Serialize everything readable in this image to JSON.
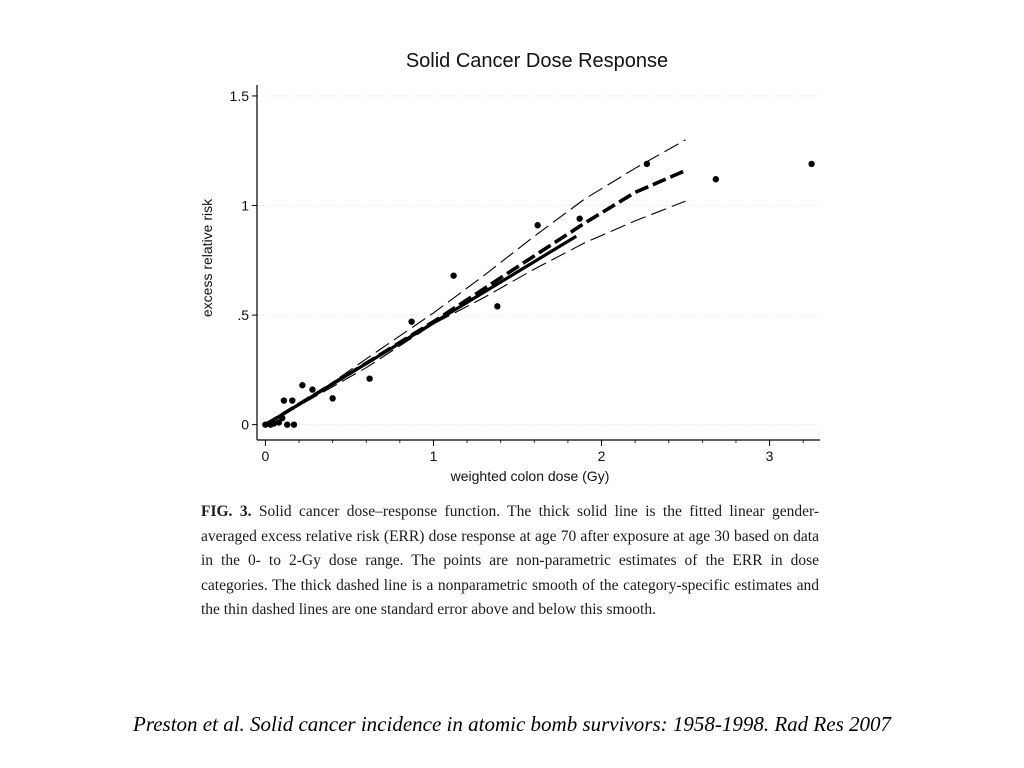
{
  "chart_data": {
    "type": "line",
    "title": "Solid Cancer Dose Response",
    "xlabel": "weighted colon dose (Gy)",
    "ylabel": "excess relative risk",
    "xlim": [
      -0.05,
      3.3
    ],
    "ylim": [
      -0.07,
      1.55
    ],
    "x_ticks": [
      0,
      1,
      2,
      3
    ],
    "x_tick_labels": [
      "0",
      "1",
      "2",
      "3"
    ],
    "x_minor_ticks": [
      0.2,
      0.4,
      0.6,
      0.8,
      1.2,
      1.4,
      1.6,
      1.8,
      2.2,
      2.4,
      2.6,
      2.8,
      3.2
    ],
    "y_ticks": [
      0,
      0.5,
      1,
      1.5
    ],
    "y_tick_labels": [
      "0",
      ".5",
      "1",
      "1.5"
    ],
    "grid": true,
    "series": [
      {
        "style": "thick-solid",
        "x": [
          0,
          1.85
        ],
        "y": [
          0,
          0.86
        ]
      },
      {
        "style": "thick-dashed",
        "x": [
          0,
          0.3,
          0.6,
          1.0,
          1.3,
          1.6,
          1.9,
          2.2,
          2.5
        ],
        "y": [
          0,
          0.14,
          0.28,
          0.47,
          0.62,
          0.77,
          0.92,
          1.06,
          1.16
        ]
      },
      {
        "style": "thin-dashed",
        "x": [
          0,
          0.3,
          0.6,
          1.0,
          1.3,
          1.6,
          1.9,
          2.2,
          2.5
        ],
        "y": [
          0,
          0.14,
          0.3,
          0.51,
          0.68,
          0.86,
          1.03,
          1.17,
          1.3
        ]
      },
      {
        "style": "thin-dashed",
        "x": [
          0,
          0.3,
          0.6,
          1.0,
          1.3,
          1.6,
          1.9,
          2.2,
          2.5
        ],
        "y": [
          0,
          0.13,
          0.26,
          0.46,
          0.58,
          0.71,
          0.83,
          0.93,
          1.02
        ]
      },
      {
        "style": "points",
        "x": [
          0.0,
          0.03,
          0.05,
          0.08,
          0.1,
          0.11,
          0.13,
          0.16,
          0.17,
          0.22,
          0.28,
          0.4,
          0.62,
          0.87,
          1.12,
          1.38,
          1.62,
          1.87,
          2.27,
          2.68,
          3.25
        ],
        "y": [
          0.0,
          0.0,
          0.005,
          0.01,
          0.03,
          0.11,
          0.0,
          0.11,
          0.0,
          0.18,
          0.16,
          0.12,
          0.21,
          0.47,
          0.68,
          0.54,
          0.91,
          0.94,
          1.19,
          1.12,
          1.19
        ]
      }
    ]
  },
  "caption": {
    "label": "FIG. 3.",
    "text": "Solid cancer dose–response function. The thick solid line is the fitted linear gender-averaged excess relative risk (ERR) dose response at age 70 after exposure at age 30 based on data in the 0- to 2-Gy dose range. The points are non-parametric estimates of the ERR in dose categories. The thick dashed line is a nonparametric smooth of the category-specific estimates and the thin dashed lines are one standard error above and below this smooth."
  },
  "citation": "Preston et al. Solid cancer incidence in atomic bomb survivors: 1958-1998. Rad Res 2007"
}
